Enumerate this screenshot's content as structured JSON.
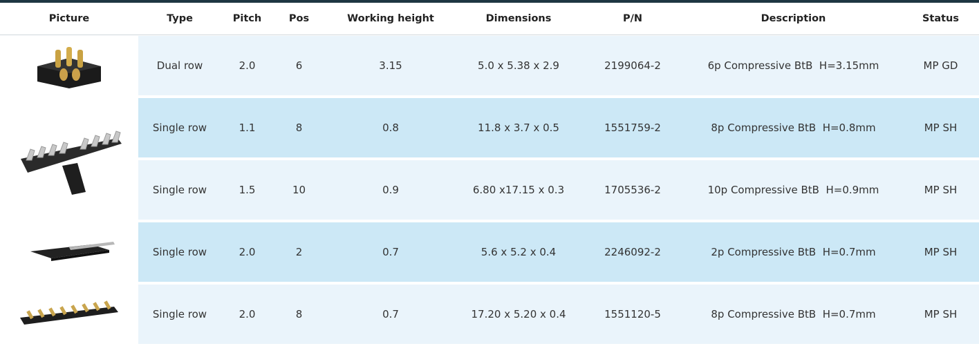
{
  "table": {
    "columns": [
      "Picture",
      "Type",
      "Pitch",
      "Pos",
      "Working height",
      "Dimensions",
      "P/N",
      "Description",
      "Status"
    ],
    "rows": [
      [
        "Dual row",
        "2.0",
        "6",
        "3.15",
        "5.0 x 5.38 x 2.9",
        "2199064-2",
        "6p Compressive BtB  H=3.15mm",
        "MP GD"
      ],
      [
        "Single row",
        "1.1",
        "8",
        "0.8",
        "11.8 x 3.7 x 0.5",
        "1551759-2",
        "8p Compressive BtB  H=0.8mm",
        "MP SH"
      ],
      [
        "Single row",
        "1.5",
        "10",
        "0.9",
        "6.80 x17.15 x 0.3",
        "1705536-2",
        "10p Compressive BtB  H=0.9mm",
        "MP SH"
      ],
      [
        "Single row",
        "2.0",
        "2",
        "0.7",
        "5.6 x 5.2 x 0.4",
        "2246092-2",
        "2p Compressive BtB  H=0.7mm",
        "MP SH"
      ],
      [
        "Single row",
        "2.0",
        "8",
        "0.7",
        "17.20 x 5.20 x 0.4",
        "1551120-5",
        "8p Compressive BtB  H=0.7mm",
        "MP SH"
      ]
    ]
  }
}
